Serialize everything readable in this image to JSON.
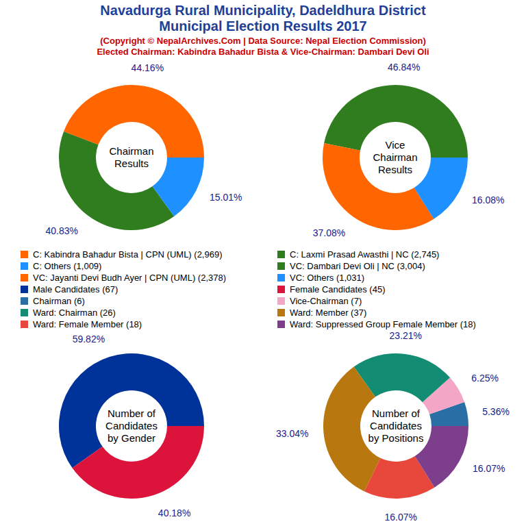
{
  "header": {
    "title": [
      "Navadurga Rural Municipality, Dadeldhura District",
      "Municipal Election Results 2017"
    ],
    "source": "(Copyright © NepalArchives.Com | Data Source: Nepal Election Commission)",
    "elected": "Elected Chairman: Kabindra Bahadur Bista & Vice-Chairman: Dambari Devi Oli"
  },
  "chart_data": [
    {
      "type": "donut",
      "title": [
        "Chairman",
        "Results"
      ],
      "categories": [
        "C: Kabindra Bahadur Bista | CPN (UML) (2,969)",
        "C: Laxmi Prasad Awasthi | NC (2,745)",
        "C: Others (1,009)"
      ],
      "values": [
        44.16,
        40.83,
        15.01
      ],
      "value_labels": [
        "44.16%",
        "40.83%",
        "15.01%"
      ],
      "colors": [
        "#ff6600",
        "#2f7d1f",
        "#1e90ff"
      ],
      "data_labels": true
    },
    {
      "type": "donut",
      "title": [
        "Vice",
        "Chairman",
        "Results"
      ],
      "categories": [
        "VC: Dambari Devi Oli | NC (3,004)",
        "VC: Jayanti Devi Budh Ayer | CPN (UML) (2,378)",
        "VC: Others (1,031)"
      ],
      "values": [
        46.84,
        37.08,
        16.08
      ],
      "value_labels": [
        "46.84%",
        "37.08%",
        "16.08%"
      ],
      "colors": [
        "#2f7d1f",
        "#ff6600",
        "#1e90ff"
      ],
      "data_labels": true
    },
    {
      "type": "donut",
      "title": [
        "Number of",
        "Candidates",
        "by Gender"
      ],
      "categories": [
        "Male Candidates (67)",
        "Female Candidates (45)"
      ],
      "values": [
        59.82,
        40.18
      ],
      "value_labels": [
        "59.82%",
        "40.18%"
      ],
      "colors": [
        "#003399",
        "#dc143c"
      ],
      "data_labels": true
    },
    {
      "type": "donut",
      "title": [
        "Number of",
        "Candidates",
        "by Positions"
      ],
      "categories": [
        "Chairman (6)",
        "Vice-Chairman (7)",
        "Ward: Chairman (26)",
        "Ward: Member (37)",
        "Ward: Female Member (18)",
        "Ward: Suppressed Group Female Member (18)"
      ],
      "values": [
        5.36,
        6.25,
        23.21,
        33.04,
        16.07,
        16.07
      ],
      "value_labels": [
        "5.36%",
        "6.25%",
        "23.21%",
        "33.04%",
        "16.07%",
        "16.07%"
      ],
      "colors": [
        "#2a6ea6",
        "#f4a6c6",
        "#138c74",
        "#b8780f",
        "#e8483c",
        "#7d3f8c"
      ],
      "data_labels": true
    }
  ]
}
